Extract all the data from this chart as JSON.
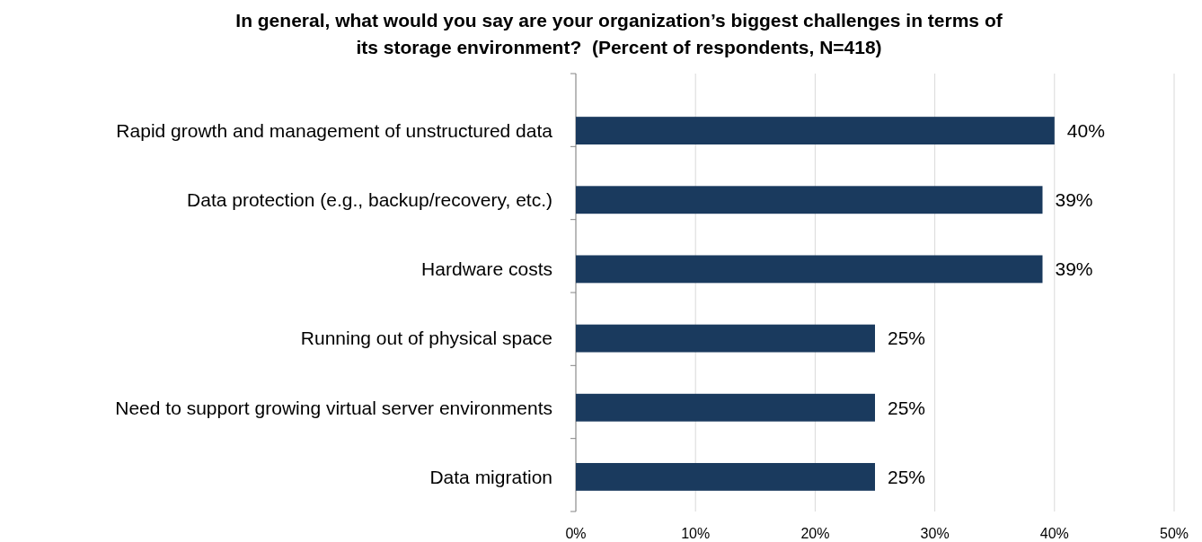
{
  "chart_data": {
    "type": "bar",
    "orientation": "horizontal",
    "title": "In general, what would you say are your organization’s biggest challenges in terms of its storage environment?  (Percent of respondents, N=418)",
    "categories": [
      "Rapid growth and management of unstructured data",
      "Data protection (e.g., backup/recovery, etc.)",
      "Hardware costs",
      "Running out of physical space",
      "Need to support growing virtual server environments",
      "Data migration"
    ],
    "values": [
      40,
      39,
      39,
      25,
      25,
      25
    ],
    "value_labels": [
      "40%",
      "39%",
      "39%",
      "25%",
      "25%",
      "25%"
    ],
    "color": "#1a3a5e",
    "xlim": [
      0,
      50
    ],
    "xticks": [
      {
        "value": 0,
        "label": "0%"
      },
      {
        "value": 10,
        "label": "10%"
      },
      {
        "value": 20,
        "label": "20%"
      },
      {
        "value": 30,
        "label": "30%"
      },
      {
        "value": 40,
        "label": "40%"
      },
      {
        "value": 50,
        "label": "50%"
      }
    ],
    "grid": "x"
  }
}
